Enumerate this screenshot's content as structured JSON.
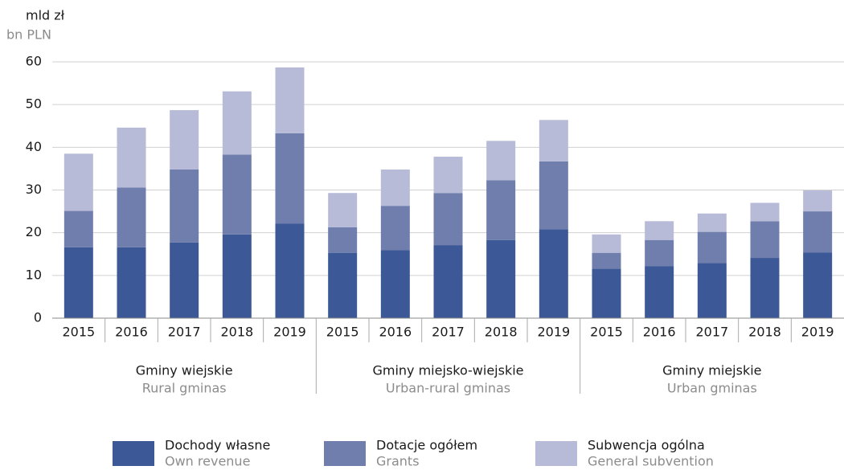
{
  "chart_data": {
    "type": "stacked_bar",
    "y_label": "mld zł",
    "y_label_en": "bn PLN",
    "categories": [
      "2015",
      "2016",
      "2017",
      "2018",
      "2019",
      "2015",
      "2016",
      "2017",
      "2018",
      "2019",
      "2015",
      "2016",
      "2017",
      "2018",
      "2019"
    ],
    "groups": [
      {
        "name": "Gminy wiejskie",
        "name_en": "Rural gminas",
        "size": 5
      },
      {
        "name": "Gminy miejsko-wiejskie",
        "name_en": "Urban-rural gminas",
        "size": 5
      },
      {
        "name": "Gminy miejskie",
        "name_en": "Urban gminas",
        "size": 5
      }
    ],
    "series": [
      {
        "name": "Dochody własne",
        "name_en": "Own revenue",
        "color": "#3d5896",
        "values": [
          16.6,
          16.6,
          17.7,
          19.6,
          22.1,
          15.3,
          15.9,
          17.1,
          18.3,
          20.8,
          11.6,
          12.2,
          12.9,
          14.1,
          15.4
        ]
      },
      {
        "name": "Dotacje ogółem",
        "name_en": "Grants",
        "color": "#6f7eac",
        "values": [
          8.5,
          14.0,
          17.1,
          18.7,
          21.2,
          6.0,
          10.4,
          12.2,
          14.0,
          15.9,
          3.7,
          6.1,
          7.3,
          8.6,
          9.6
        ]
      },
      {
        "name": "Subwencja ogólna",
        "name_en": "General subvention",
        "color": "#b7bbd8",
        "values": [
          13.4,
          14.0,
          13.9,
          14.8,
          15.4,
          8.0,
          8.5,
          8.5,
          9.2,
          9.7,
          4.3,
          4.4,
          4.3,
          4.3,
          4.9
        ]
      }
    ],
    "ylim": [
      0,
      60
    ],
    "yticks": [
      0,
      10,
      20,
      30,
      40,
      50,
      60
    ],
    "grid": true
  }
}
